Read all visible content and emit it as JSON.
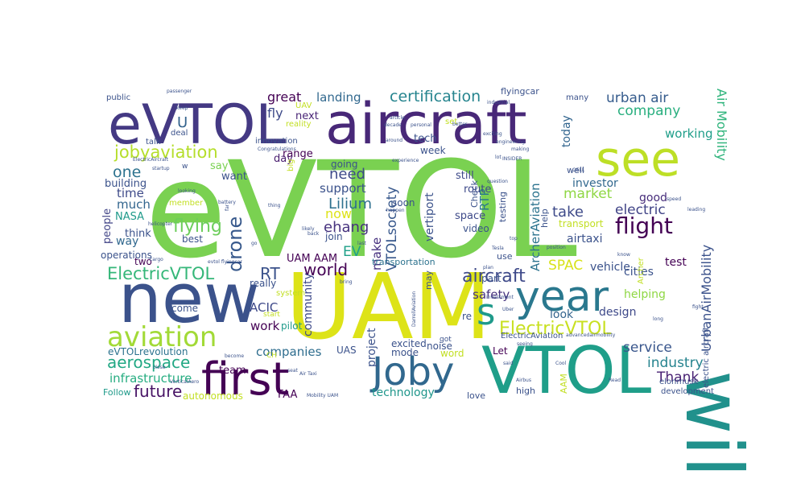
{
  "words": [
    {
      "text": "eVTOL",
      "color": "#7ad151"
    },
    {
      "text": "UAM",
      "color": "#dde318"
    },
    {
      "text": "new",
      "color": "#3b528b"
    },
    {
      "text": "will",
      "color": "#21918c"
    },
    {
      "text": "VTOL",
      "color": "#1f9e89"
    },
    {
      "text": "aircraft",
      "color": "#482878"
    },
    {
      "text": "eVTOL",
      "color": "#443983"
    },
    {
      "text": "see",
      "color": "#bddf26"
    },
    {
      "text": "year",
      "color": "#2a788e"
    },
    {
      "text": "first",
      "color": "#440154"
    },
    {
      "text": "Joby",
      "color": "#31688e"
    },
    {
      "text": "s",
      "color": "#1f9a8a"
    },
    {
      "text": "aviation",
      "color": "#a2da37"
    },
    {
      "text": "ElectricVTOL",
      "color": "#35b779"
    },
    {
      "text": "ElectricVTOL",
      "color": "#c8e020"
    },
    {
      "text": "aircraft",
      "color": "#3e4989"
    },
    {
      "text": "flight",
      "color": "#440154"
    },
    {
      "text": "jobyaviation",
      "color": "#b5de2b"
    },
    {
      "text": "aerospace",
      "color": "#22a884"
    },
    {
      "text": "future",
      "color": "#471365"
    },
    {
      "text": "drone",
      "color": "#38598c"
    },
    {
      "text": "flying",
      "color": "#6ccd5a"
    },
    {
      "text": "certification",
      "color": "#25848e"
    },
    {
      "text": "SPAC",
      "color": "#d8e219"
    },
    {
      "text": "RT",
      "color": "#3b528b"
    },
    {
      "text": "one",
      "color": "#2c728e"
    },
    {
      "text": "Thank",
      "color": "#482173"
    },
    {
      "text": "industry",
      "color": "#25838e"
    },
    {
      "text": "service",
      "color": "#39568c"
    },
    {
      "text": "world",
      "color": "#440154"
    },
    {
      "text": "EV",
      "color": "#1fa088"
    },
    {
      "text": "Lilium",
      "color": "#2d708e"
    },
    {
      "text": "now",
      "color": "#dde318"
    },
    {
      "text": "ehang",
      "color": "#46327e"
    },
    {
      "text": "need",
      "color": "#3e4a89"
    },
    {
      "text": "market",
      "color": "#8fd744"
    },
    {
      "text": "take",
      "color": "#3e4a89"
    },
    {
      "text": "electric",
      "color": "#414487"
    },
    {
      "text": "urban air",
      "color": "#365c8d"
    },
    {
      "text": "company",
      "color": "#29af7f"
    },
    {
      "text": "Air Mobility",
      "color": "#2fb47c"
    },
    {
      "text": "UrbanAirMobility",
      "color": "#3b528b"
    },
    {
      "text": "great",
      "color": "#440154"
    },
    {
      "text": "fly",
      "color": "#3e4a89"
    },
    {
      "text": "landing",
      "color": "#31688e"
    },
    {
      "text": "U",
      "color": "#33638d"
    },
    {
      "text": "today",
      "color": "#32658e"
    },
    {
      "text": "much",
      "color": "#32658e"
    },
    {
      "text": "working",
      "color": "#1f9e89"
    },
    {
      "text": "infrastructure",
      "color": "#27ad81"
    },
    {
      "text": "companies",
      "color": "#2e6d8e"
    },
    {
      "text": "time",
      "color": "#3e4a89"
    },
    {
      "text": "way",
      "color": "#31688e"
    },
    {
      "text": "make",
      "color": "#46307e"
    },
    {
      "text": "VTOLsociety",
      "color": "#38588c"
    },
    {
      "text": "ArcherAviation",
      "color": "#2c738e"
    },
    {
      "text": "RTP",
      "color": "#2a788e"
    },
    {
      "text": "vertiport",
      "color": "#3b528b"
    },
    {
      "text": "support",
      "color": "#3b528b"
    },
    {
      "text": "work",
      "color": "#440154"
    },
    {
      "text": "ACIC",
      "color": "#3e4989"
    },
    {
      "text": "community",
      "color": "#3e4a89"
    },
    {
      "text": "project",
      "color": "#3b528b"
    },
    {
      "text": "technology",
      "color": "#1f968b"
    },
    {
      "text": "safety",
      "color": "#46327e"
    },
    {
      "text": "airtaxi",
      "color": "#3b528b"
    },
    {
      "text": "investor",
      "color": "#31688e"
    },
    {
      "text": "good",
      "color": "#472d7b"
    },
    {
      "text": "vehicle",
      "color": "#3b528b"
    },
    {
      "text": "cities",
      "color": "#3b528b"
    },
    {
      "text": "test",
      "color": "#440154"
    },
    {
      "text": "design",
      "color": "#3e4989"
    },
    {
      "text": "look",
      "color": "#33638d"
    },
    {
      "text": "helping",
      "color": "#8fd744"
    },
    {
      "text": "UAM AAM",
      "color": "#440154"
    },
    {
      "text": "space",
      "color": "#3e4a89"
    },
    {
      "text": "route",
      "color": "#3e4a89"
    },
    {
      "text": "still",
      "color": "#3e4a89"
    },
    {
      "text": "transport",
      "color": "#c2df23"
    },
    {
      "text": "range",
      "color": "#440154"
    },
    {
      "text": "next",
      "color": "#482475"
    },
    {
      "text": "day",
      "color": "#481c6e"
    },
    {
      "text": "going",
      "color": "#3b528b"
    },
    {
      "text": "tech",
      "color": "#3b528b"
    },
    {
      "text": "week",
      "color": "#3b528b"
    },
    {
      "text": "say",
      "color": "#7ad151"
    },
    {
      "text": "want",
      "color": "#3b528b"
    },
    {
      "text": "building",
      "color": "#3b528b"
    },
    {
      "text": "people",
      "color": "#414487"
    },
    {
      "text": "NASA",
      "color": "#1f9a8a"
    },
    {
      "text": "think",
      "color": "#3b528b"
    },
    {
      "text": "best",
      "color": "#3b528b"
    },
    {
      "text": "two",
      "color": "#440154"
    },
    {
      "text": "operations",
      "color": "#3b528b"
    },
    {
      "text": "really",
      "color": "#3b528b"
    },
    {
      "text": "come",
      "color": "#3b528b"
    },
    {
      "text": "pilot",
      "color": "#1f9a8a"
    },
    {
      "text": "eVTOLrevolution",
      "color": "#2c728e"
    },
    {
      "text": "team",
      "color": "#440154"
    },
    {
      "text": "autonomous",
      "color": "#c2df23"
    },
    {
      "text": "FAA",
      "color": "#440154"
    },
    {
      "text": "UAS",
      "color": "#3b528b"
    },
    {
      "text": "Follow",
      "color": "#1f9a8a"
    },
    {
      "text": "mode",
      "color": "#3b528b"
    },
    {
      "text": "noise",
      "color": "#3b528b"
    },
    {
      "text": "word",
      "color": "#c2df23"
    },
    {
      "text": "excited",
      "color": "#3b528b"
    },
    {
      "text": "transportation",
      "color": "#2c728e"
    },
    {
      "text": "join",
      "color": "#3b528b"
    },
    {
      "text": "video",
      "color": "#3b528b"
    },
    {
      "text": "help",
      "color": "#3b528b"
    },
    {
      "text": "testing",
      "color": "#3b528b"
    },
    {
      "text": "Check",
      "color": "#3b528b"
    },
    {
      "text": "soon",
      "color": "#3b528b"
    },
    {
      "text": "may",
      "color": "#3b528b"
    },
    {
      "text": "part",
      "color": "#3b528b"
    },
    {
      "text": "re",
      "color": "#3b528b"
    },
    {
      "text": "Let",
      "color": "#440154"
    },
    {
      "text": "high",
      "color": "#3b528b"
    },
    {
      "text": "love",
      "color": "#3b528b"
    },
    {
      "text": "AAM",
      "color": "#c2df23"
    },
    {
      "text": "development",
      "color": "#3b528b"
    },
    {
      "text": "elonmusk",
      "color": "#3b528b"
    },
    {
      "text": "well",
      "color": "#3b528b"
    },
    {
      "text": "flyingcar",
      "color": "#3b528b"
    },
    {
      "text": "many",
      "color": "#3b528b"
    },
    {
      "text": "public",
      "color": "#3b528b"
    },
    {
      "text": "deal",
      "color": "#3b528b"
    },
    {
      "text": "talk",
      "color": "#3b528b"
    },
    {
      "text": "innovation",
      "color": "#3b528b"
    },
    {
      "text": "reality",
      "color": "#c2df23"
    },
    {
      "text": "UAV",
      "color": "#c2df23"
    },
    {
      "text": "use",
      "color": "#3b528b"
    },
    {
      "text": "ElectricAviation",
      "color": "#3b528b"
    },
    {
      "text": "member",
      "color": "#c2df23"
    },
    {
      "text": "big",
      "color": "#c2df23"
    },
    {
      "text": "electric aircraft",
      "color": "#3b528b"
    },
    {
      "text": "Archer",
      "color": "#c2df23"
    },
    {
      "text": "set",
      "color": "#c2df23"
    },
    {
      "text": "passenger",
      "color": "#3b528b"
    },
    {
      "text": "keep",
      "color": "#3b528b"
    },
    {
      "text": "Congratulations",
      "color": "#3b528b"
    },
    {
      "text": "experience",
      "color": "#3b528b"
    },
    {
      "text": "personal",
      "color": "#3b528b"
    },
    {
      "text": "decade",
      "color": "#3b528b"
    },
    {
      "text": "better",
      "color": "#3b528b"
    },
    {
      "text": "exciting",
      "color": "#3b528b"
    },
    {
      "text": "engineering",
      "color": "#3b528b"
    },
    {
      "text": "making",
      "color": "#3b528b"
    },
    {
      "text": "startup",
      "color": "#3b528b"
    },
    {
      "text": "ElectricAircraft",
      "color": "#3b528b"
    },
    {
      "text": "battery",
      "color": "#3b528b"
    },
    {
      "text": "looking",
      "color": "#3b528b"
    },
    {
      "text": "likely",
      "color": "#3b528b"
    },
    {
      "text": "back",
      "color": "#3b528b"
    },
    {
      "text": "happen",
      "color": "#3b528b"
    },
    {
      "text": "cargo",
      "color": "#3b528b"
    },
    {
      "text": "evtol flyingcar",
      "color": "#3b528b"
    },
    {
      "text": "bring",
      "color": "#3b528b"
    },
    {
      "text": "system",
      "color": "#c2df23"
    },
    {
      "text": "start",
      "color": "#c2df23"
    },
    {
      "text": "CH",
      "color": "#c2df23"
    },
    {
      "text": "Mobility UAM",
      "color": "#3b528b"
    },
    {
      "text": "Air Taxi",
      "color": "#3b528b"
    },
    {
      "text": "become",
      "color": "#3b528b"
    },
    {
      "text": "close",
      "color": "#3b528b"
    },
    {
      "text": "VerticalAero",
      "color": "#3b528b"
    },
    {
      "text": "seat",
      "color": "#3b528b"
    },
    {
      "text": "lot",
      "color": "#3b528b"
    },
    {
      "text": "Tesla",
      "color": "#3b528b"
    },
    {
      "text": "speed",
      "color": "#3b528b"
    },
    {
      "text": "leading",
      "color": "#3b528b"
    },
    {
      "text": "position",
      "color": "#3b528b"
    },
    {
      "text": "top",
      "color": "#3b528b"
    },
    {
      "text": "long",
      "color": "#3b528b"
    },
    {
      "text": "fight",
      "color": "#3b528b"
    },
    {
      "text": "Uber",
      "color": "#3b528b"
    },
    {
      "text": "Airbus",
      "color": "#3b528b"
    },
    {
      "text": "Cool",
      "color": "#3b528b"
    },
    {
      "text": "Read",
      "color": "#3b528b"
    },
    {
      "text": "investment",
      "color": "#3b528b"
    },
    {
      "text": "question",
      "color": "#3b528b"
    },
    {
      "text": "advancedairmobility",
      "color": "#3b528b"
    },
    {
      "text": "helicopter",
      "color": "#3b528b"
    },
    {
      "text": "flying car",
      "color": "#3b528b"
    },
    {
      "text": "INSIDER",
      "color": "#3b528b"
    },
    {
      "text": "article",
      "color": "#3b528b"
    },
    {
      "text": "around",
      "color": "#3b528b"
    },
    {
      "text": "thing",
      "color": "#3b528b"
    },
    {
      "text": "far",
      "color": "#3b528b"
    },
    {
      "text": "go",
      "color": "#3b528b"
    },
    {
      "text": "last",
      "color": "#3b528b"
    },
    {
      "text": "w",
      "color": "#3b528b"
    },
    {
      "text": "DarrellAviation",
      "color": "#3b528b"
    },
    {
      "text": "QELL",
      "color": "#3b528b"
    },
    {
      "text": "know",
      "color": "#3b528b"
    },
    {
      "text": "seeing",
      "color": "#3b528b"
    },
    {
      "text": "industrial",
      "color": "#3b528b"
    },
    {
      "text": "said",
      "color": "#3b528b"
    },
    {
      "text": "got",
      "color": "#3b528b"
    },
    {
      "text": "plan",
      "color": "#3b528b"
    }
  ]
}
